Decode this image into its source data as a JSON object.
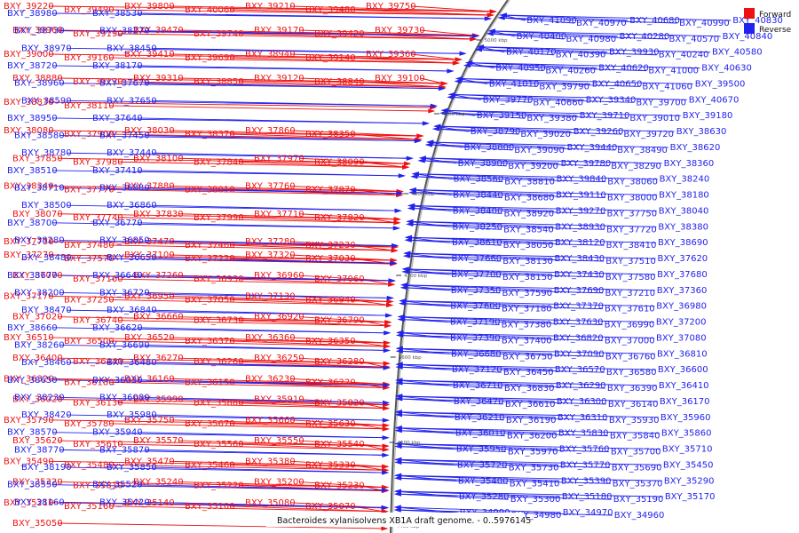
{
  "caption": "Bacteroides xylanisolvens XB1A draft genome. - 0..5976145",
  "legend": [
    {
      "label": "Forward",
      "color": "#ee1111"
    },
    {
      "label": "Reverse",
      "color": "#2222ee"
    }
  ],
  "colors": {
    "forward": "#ee1111",
    "reverse": "#2222ee",
    "backbone": "#555555"
  },
  "scale_ticks": [
    "5000 kbp",
    "4900 kbp",
    "4800 kbp",
    "4700 kbp",
    "4600 kbp",
    "4500 kbp",
    "4400 kbp"
  ],
  "forward_genes": [
    "BXY_39220",
    "BXY_39490",
    "BXY_39800",
    "BXY_40060",
    "BXY_39210",
    "BXY_39480",
    "BXY_39750",
    "BXY_39960",
    "BXY_39190",
    "BXY_39470",
    "BXY_39740",
    "BXY_39170",
    "BXY_39420",
    "BXY_39730",
    "BXY_39000",
    "BXY_39160",
    "BXY_39410",
    "BXY_39690",
    "BXY_38940",
    "BXY_39140",
    "BXY_39360",
    "BXY_38880",
    "BXY_39130",
    "BXY_39310",
    "BXY_38850",
    "BXY_39120",
    "BXY_38840",
    "BXY_39100",
    "BXY_38830",
    "BXY_38110",
    "BXY_38080",
    "BXY_37900",
    "BXY_38030",
    "BXY_38370",
    "BXY_37860",
    "BXY_38350",
    "BXY_37850",
    "BXY_37980",
    "BXY_38100",
    "BXY_37840",
    "BXY_37970",
    "BXY_38090",
    "BXY_38340",
    "BXY_37770",
    "BXY_37880",
    "BXY_38010",
    "BXY_37760",
    "BXY_37870",
    "BXY_38070",
    "BXY_37740",
    "BXY_37830",
    "BXY_37990",
    "BXY_37710",
    "BXY_37820",
    "BXY_37730",
    "BXY_37480",
    "BXY_37470",
    "BXY_37460",
    "BXY_37280",
    "BXY_37230",
    "BXY_37270",
    "BXY_37570",
    "BXY_37100",
    "BXY_37220",
    "BXY_37320",
    "BXY_37030",
    "BXY_37070",
    "BXY_37160",
    "BXY_37260",
    "BXY_36930",
    "BXY_36960",
    "BXY_37060",
    "BXY_37170",
    "BXY_37250",
    "BXY_36950",
    "BXY_37050",
    "BXY_37130",
    "BXY_36940",
    "BXY_37020",
    "BXY_36740",
    "BXY_36660",
    "BXY_36730",
    "BXY_36920",
    "BXY_36790",
    "BXY_36510",
    "BXY_36500",
    "BXY_36520",
    "BXY_36370",
    "BXY_36360",
    "BXY_36350",
    "BXY_36400",
    "BXY_36440",
    "BXY_36270",
    "BXY_36260",
    "BXY_36250",
    "BXY_36280",
    "BXY_36320",
    "BXY_36180",
    "BXY_36160",
    "BXY_36150",
    "BXY_36230",
    "BXY_36220",
    "BXY_36020",
    "BXY_36130",
    "BXY_35990",
    "BXY_35880",
    "BXY_35910",
    "BXY_35820",
    "BXY_35790",
    "BXY_35780",
    "BXY_35750",
    "BXY_35670",
    "BXY_35660",
    "BXY_35630",
    "BXY_35620",
    "BXY_35610",
    "BXY_35570",
    "BXY_35560",
    "BXY_35550",
    "BXY_35540",
    "BXY_35490",
    "BXY_35480",
    "BXY_35470",
    "BXY_35460",
    "BXY_35380",
    "BXY_35330",
    "BXY_35320",
    "BXY_35310",
    "BXY_35240",
    "BXY_35220",
    "BXY_35200",
    "BXY_35230",
    "BXY_35210",
    "BXY_35160",
    "BXY_35140",
    "BXY_35100",
    "BXY_35080",
    "BXY_35070",
    "BXY_35050"
  ],
  "reverse_genes_left": [
    "BXY_38980",
    "BXY_38730",
    "BXY_38970",
    "BXY_38720",
    "BXY_38960",
    "BXY_38590",
    "BXY_38950",
    "BXY_38580",
    "BXY_38780",
    "BXY_38510",
    "BXY_38710",
    "BXY_38500",
    "BXY_38700",
    "BXY_38280",
    "BXY_38480",
    "BXY_38670",
    "BXY_38200",
    "BXY_38470",
    "BXY_38660",
    "BXY_38260",
    "BXY_38460",
    "BXY_38650",
    "BXY_38230",
    "BXY_38420",
    "BXY_38570",
    "BXY_38770",
    "BXY_38190",
    "BXY_38550",
    "BXY_38160",
    "BXY_38530",
    "BXY_38270",
    "BXY_38450",
    "BXY_38170",
    "BXY_37670",
    "BXY_37650",
    "BXY_37640",
    "BXY_37450",
    "BXY_37440",
    "BXY_37410",
    "BXY_36880",
    "BXY_36860",
    "BXY_36770",
    "BXY_36850",
    "BXY_36650",
    "BXY_36640",
    "BXY_36720",
    "BXY_36840",
    "BXY_36620",
    "BXY_36690",
    "BXY_36480",
    "BXY_36030",
    "BXY_36080",
    "BXY_35980",
    "BXY_35940",
    "BXY_35870",
    "BXY_35850",
    "BXY_35520",
    "BXY_35420"
  ],
  "reverse_genes_right": [
    "BXY_41090",
    "BXY_40970",
    "BXY_40680",
    "BXY_40990",
    "BXY_40830",
    "BXY_40400",
    "BXY_40980",
    "BXY_40280",
    "BXY_40570",
    "BXY_40840",
    "BXY_40170",
    "BXY_40390",
    "BXY_39930",
    "BXY_40240",
    "BXY_40580",
    "BXY_40950",
    "BXY_40260",
    "BXY_40620",
    "BXY_41000",
    "BXY_40630",
    "BXY_41010",
    "BXY_39790",
    "BXY_40650",
    "BXY_41060",
    "BXY_39500",
    "BXY_39770",
    "BXY_40660",
    "BXY_39340",
    "BXY_39700",
    "BXY_40670",
    "BXY_39150",
    "BXY_39380",
    "BXY_39710",
    "BXY_39010",
    "BXY_39180",
    "BXY_38790",
    "BXY_39020",
    "BXY_39260",
    "BXY_39720",
    "BXY_38630",
    "BXY_38800",
    "BXY_39090",
    "BXY_39440",
    "BXY_38490",
    "BXY_38620",
    "BXY_38900",
    "BXY_39200",
    "BXY_39780",
    "BXY_38290",
    "BXY_38360",
    "BXY_38560",
    "BXY_38810",
    "BXY_39840",
    "BXY_38060",
    "BXY_38240",
    "BXY_38440",
    "BXY_38680",
    "BXY_39110",
    "BXY_38000",
    "BXY_38180",
    "BXY_38400",
    "BXY_38920",
    "BXY_39270",
    "BXY_37750",
    "BXY_38040",
    "BXY_38250",
    "BXY_38540",
    "BXY_38930",
    "BXY_37720",
    "BXY_38380",
    "BXY_38610",
    "BXY_38050",
    "BXY_38120",
    "BXY_38410",
    "BXY_38690",
    "BXY_37660",
    "BXY_38130",
    "BXY_38430",
    "BXY_37510",
    "BXY_37620",
    "BXY_37700",
    "BXY_38150",
    "BXY_37430",
    "BXY_37580",
    "BXY_37680",
    "BXY_37350",
    "BXY_37590",
    "BXY_37690",
    "BXY_37210",
    "BXY_37360",
    "BXY_37600",
    "BXY_37180",
    "BXY_37370",
    "BXY_37610",
    "BXY_36980",
    "BXY_37190",
    "BXY_37380",
    "BXY_37630",
    "BXY_36990",
    "BXY_37200",
    "BXY_37390",
    "BXY_37400",
    "BXY_36820",
    "BXY_37000",
    "BXY_37080",
    "BXY_36680",
    "BXY_36750",
    "BXY_37090",
    "BXY_36760",
    "BXY_36810",
    "BXY_37120",
    "BXY_36450",
    "BXY_36570",
    "BXY_36580",
    "BXY_36600",
    "BXY_36710",
    "BXY_36830",
    "BXY_36290",
    "BXY_36390",
    "BXY_36410",
    "BXY_36470",
    "BXY_36610",
    "BXY_36300",
    "BXY_36140",
    "BXY_36170",
    "BXY_36210",
    "BXY_36190",
    "BXY_36310",
    "BXY_35930",
    "BXY_35960",
    "BXY_36010",
    "BXY_36200",
    "BXY_35830",
    "BXY_35840",
    "BXY_35860",
    "BXY_35950",
    "BXY_35970",
    "BXY_35760",
    "BXY_35700",
    "BXY_35710",
    "BXY_35720",
    "BXY_35730",
    "BXY_35770",
    "BXY_35690",
    "BXY_35450",
    "BXY_35400",
    "BXY_35410",
    "BXY_35390",
    "BXY_35370",
    "BXY_35290",
    "BXY_35280",
    "BXY_35300",
    "BXY_35180",
    "BXY_35190",
    "BXY_35170",
    "BXY_34990",
    "BXY_34980",
    "BXY_34970",
    "BXY_34960"
  ]
}
